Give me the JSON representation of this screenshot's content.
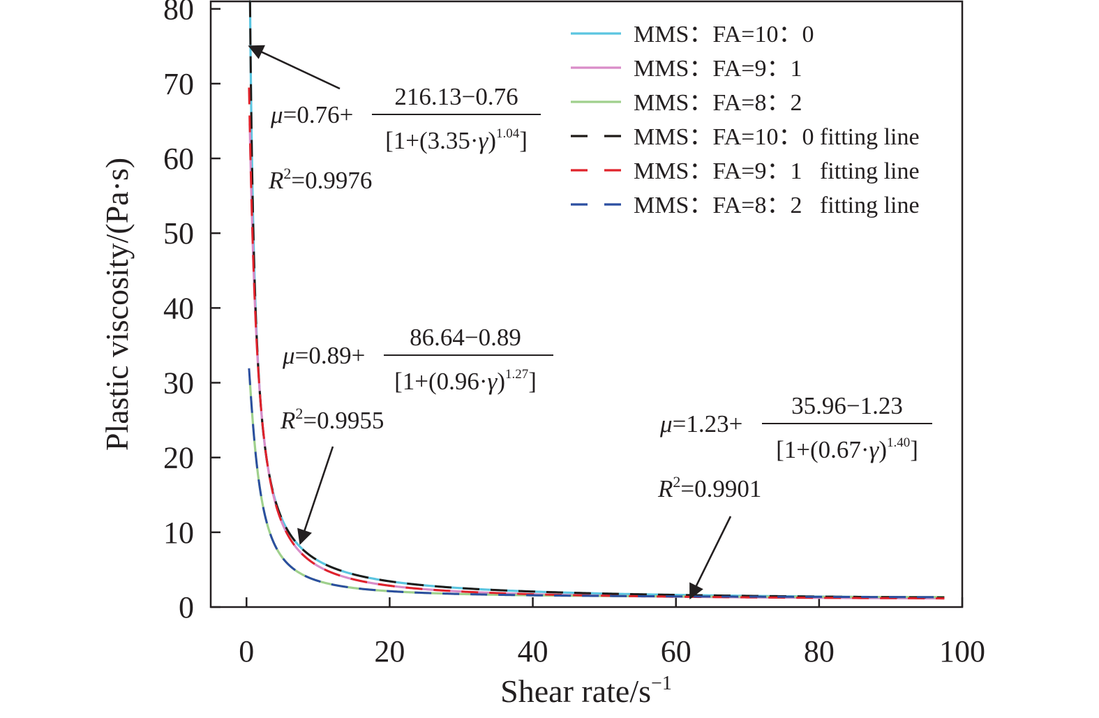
{
  "chart_data": {
    "type": "line",
    "xlabel": "Shear rate/s",
    "xlabel_sup": "−1",
    "ylabel": "Plastic viscosity/(Pa·s)",
    "xlim": [
      -5,
      100
    ],
    "ylim": [
      0,
      81
    ],
    "xticks": [
      "0",
      "20",
      "40",
      "60",
      "80",
      "100"
    ],
    "yticks": [
      "0",
      "10",
      "20",
      "30",
      "40",
      "50",
      "60",
      "70",
      "80"
    ],
    "grid": false,
    "legend_position": "top-right",
    "series": [
      {
        "name": "MMS：FA=10：0",
        "style": "solid",
        "color": "#5bc5e0",
        "model": {
          "mu_inf": 0.76,
          "mu0": 216.13,
          "k": 3.35,
          "n": 1.04
        },
        "x_start": 0.45
      },
      {
        "name": "MMS：FA=9：1",
        "style": "solid",
        "color": "#d98cc8",
        "model": {
          "mu_inf": 0.89,
          "mu0": 86.64,
          "k": 0.96,
          "n": 1.27
        },
        "x_start": 0.45
      },
      {
        "name": "MMS：FA=8：2",
        "style": "solid",
        "color": "#9fd08c",
        "model": {
          "mu_inf": 1.23,
          "mu0": 35.96,
          "k": 0.67,
          "n": 1.4
        },
        "x_start": 0.45
      },
      {
        "name": "MMS：FA=10：0 fitting line",
        "style": "dashed",
        "color": "#1f1a17",
        "model": {
          "mu_inf": 0.76,
          "mu0": 216.13,
          "k": 3.35,
          "n": 1.04
        },
        "x_start": 0.35
      },
      {
        "name": "MMS：FA=9：1   fitting line",
        "style": "dashed",
        "color": "#e0232b",
        "model": {
          "mu_inf": 0.89,
          "mu0": 86.64,
          "k": 0.96,
          "n": 1.27
        },
        "x_start": 0.35
      },
      {
        "name": "MMS：FA=8：2   fitting line",
        "style": "dashed",
        "color": "#2b4ea0",
        "model": {
          "mu_inf": 1.23,
          "mu0": 35.96,
          "k": 0.67,
          "n": 1.4
        },
        "x_start": 0.35
      }
    ],
    "annotations": [
      {
        "id": "a1",
        "lead": "μ=0.76+",
        "numerator": "216.13−0.76",
        "den_pre": "[1+(3.35·γ)",
        "den_exp": "1.04",
        "den_post": "]",
        "r2": "R²=0.9976",
        "arrow_to": [
          0.4,
          75
        ]
      },
      {
        "id": "a2",
        "lead": "μ=0.89+",
        "numerator": "86.64−0.89",
        "den_pre": "[1+(0.96·γ)",
        "den_exp": "1.27",
        "den_post": "]",
        "r2": "R²=0.9955",
        "arrow_to": [
          7.5,
          8.5
        ]
      },
      {
        "id": "a3",
        "lead": "μ=1.23+",
        "numerator": "35.96−1.23",
        "den_pre": "[1+(0.67·γ)",
        "den_exp": "1.40",
        "den_post": "]",
        "r2": "R²=0.9901",
        "arrow_to": [
          62,
          1.2
        ]
      }
    ]
  }
}
